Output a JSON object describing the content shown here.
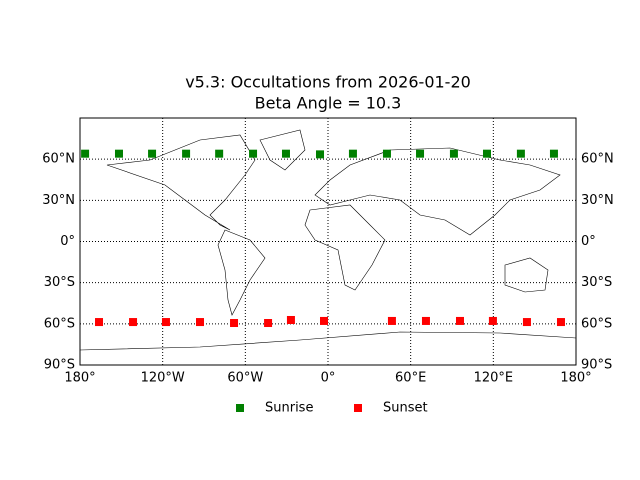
{
  "chart_data": {
    "type": "scatter",
    "title": "v5.3: Occultations from 2026-01-20",
    "subtitle": "Beta Angle = 10.3",
    "xlim": [
      -180,
      180
    ],
    "ylim": [
      -90,
      90
    ],
    "xticks": [
      {
        "value": -180,
        "label": "180°"
      },
      {
        "value": -120,
        "label": "120°W"
      },
      {
        "value": -60,
        "label": "60°W"
      },
      {
        "value": 0,
        "label": "0°"
      },
      {
        "value": 60,
        "label": "60°E"
      },
      {
        "value": 120,
        "label": "120°E"
      },
      {
        "value": 180,
        "label": "180°"
      }
    ],
    "yticks": [
      {
        "value": -90,
        "label": "90°S"
      },
      {
        "value": -60,
        "label": "60°S"
      },
      {
        "value": -30,
        "label": "30°S"
      },
      {
        "value": 0,
        "label": "0°"
      },
      {
        "value": 30,
        "label": "30°N"
      },
      {
        "value": 60,
        "label": "60°N"
      }
    ],
    "grid": true,
    "series": [
      {
        "name": "Sunrise",
        "color": "#008000",
        "x": [
          -176.3,
          -151.7,
          -127.7,
          -103,
          -79,
          -54.4,
          -30.5,
          -5.8,
          18.1,
          42.8,
          66.8,
          91.4,
          115.4,
          140,
          164
        ],
        "values": [
          64,
          64,
          64,
          64,
          64,
          64,
          64,
          63.5,
          64,
          64,
          64,
          64,
          64,
          64,
          64
        ]
      },
      {
        "name": "Sunset",
        "color": "#ff0000",
        "x": [
          -166.2,
          -141.5,
          -117.6,
          -92.9,
          -68.2,
          -43.5,
          -26.9,
          -2.9,
          46.4,
          71.1,
          95.8,
          119.7,
          144.4,
          169.1
        ],
        "values": [
          -58.7,
          -58.7,
          -58.7,
          -58.7,
          -59.4,
          -59.4,
          -57.2,
          -57.9,
          -57.9,
          -57.9,
          -57.9,
          -57.9,
          -58.7,
          -58.7
        ]
      }
    ]
  }
}
